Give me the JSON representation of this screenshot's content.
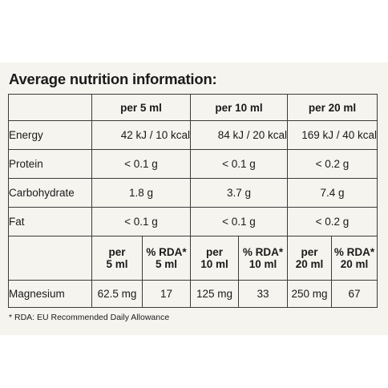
{
  "heading": "Average nutrition information:",
  "columns": [
    "per 5 ml",
    "per 10 ml",
    "per 20 ml"
  ],
  "nutrients": [
    {
      "label": "Energy",
      "v5": "42 kJ / 10 kcal",
      "v10": "84 kJ / 20 kcal",
      "v20": "169 kJ / 40 kcal"
    },
    {
      "label": "Protein",
      "v5": "< 0.1 g",
      "v10": "< 0.1 g",
      "v20": "< 0.2 g"
    },
    {
      "label": "Carbohydrate",
      "v5": "1.8 g",
      "v10": "3.7 g",
      "v20": "7.4 g"
    },
    {
      "label": "Fat",
      "v5": "< 0.1 g",
      "v10": "< 0.1 g",
      "v20": "< 0.2 g"
    }
  ],
  "subheaders": {
    "per5": [
      "per",
      "5 ml"
    ],
    "rda5": [
      "% RDA*",
      "5 ml"
    ],
    "per10": [
      "per",
      "10 ml"
    ],
    "rda10": [
      "% RDA*",
      "10 ml"
    ],
    "per20": [
      "per",
      "20 ml"
    ],
    "rda20": [
      "% RDA*",
      "20 ml"
    ]
  },
  "magnesium": {
    "label": "Magnesium",
    "per5": "62.5 mg",
    "rda5": "17",
    "per10": "125 mg",
    "rda10": "33",
    "per20": "250 mg",
    "rda20": "67"
  },
  "footnote": "* RDA: EU Recommended Daily Allowance"
}
